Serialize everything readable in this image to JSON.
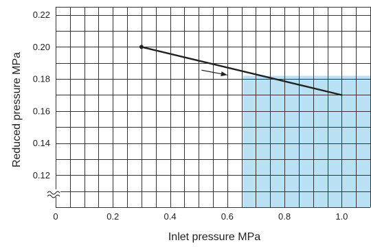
{
  "chart_data": {
    "type": "line",
    "title": "",
    "xlabel": "Inlet pressure MPa",
    "ylabel": "Reduced pressure MPa",
    "xlim": [
      0,
      1.1
    ],
    "ylim": [
      0.1,
      0.225
    ],
    "x_ticks": [
      {
        "value": 0,
        "label": "0"
      },
      {
        "value": 0.2,
        "label": "0.2"
      },
      {
        "value": 0.4,
        "label": "0.4"
      },
      {
        "value": 0.6,
        "label": "0.6"
      },
      {
        "value": 0.8,
        "label": "0.8"
      },
      {
        "value": 1.0,
        "label": "1.0"
      }
    ],
    "y_ticks": [
      {
        "value": 0.12,
        "label": "0.12"
      },
      {
        "value": 0.14,
        "label": "0.14"
      },
      {
        "value": 0.16,
        "label": "0.16"
      },
      {
        "value": 0.18,
        "label": "0.18"
      },
      {
        "value": 0.2,
        "label": "0.20"
      },
      {
        "value": 0.22,
        "label": "0.22"
      }
    ],
    "grid": true,
    "grid_x_step": 0.05,
    "grid_y_step": 0.01,
    "y_axis_break": true,
    "series": [
      {
        "x": [
          0.3,
          1.0
        ],
        "y": [
          0.2,
          0.17
        ],
        "color": "#222222",
        "start_marker": true
      }
    ],
    "shaded_region": {
      "x_from": 0.655,
      "x_to": 1.1,
      "y_from": 0.1,
      "y_to": 0.182,
      "color": "#b9e0f3"
    },
    "arrow": {
      "from": [
        0.51,
        0.1855
      ],
      "to": [
        0.6,
        0.1825
      ],
      "direction": "increasing inlet pressure"
    },
    "colors": {
      "grid": "#333333",
      "line": "#222222",
      "shade": "#b9e0f3"
    }
  }
}
